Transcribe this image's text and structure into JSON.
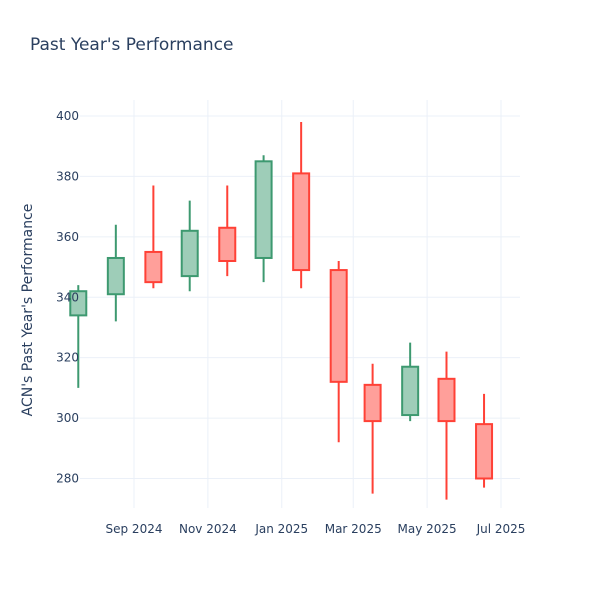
{
  "chart_data": {
    "type": "candlestick",
    "title": "Past Year's Performance",
    "ylabel": "ACN's Past Year's Performance",
    "xlabel": "",
    "ylim": [
      267,
      405
    ],
    "y_ticks": [
      280,
      300,
      320,
      340,
      360,
      380,
      400
    ],
    "x_ticks": [
      "Sep 2024",
      "Nov 2024",
      "Jan 2025",
      "Mar 2025",
      "May 2025",
      "Jul 2025"
    ],
    "colors": {
      "increasing": "#3d9970",
      "decreasing": "#ff4136",
      "increasing_fill": "#9ecdb8",
      "decreasing_fill": "#ff9f9a"
    },
    "candles": [
      {
        "date": "2024-07-17",
        "open": 334,
        "high": 344,
        "low": 310,
        "close": 342
      },
      {
        "date": "2024-08-17",
        "open": 341,
        "high": 364,
        "low": 332,
        "close": 353
      },
      {
        "date": "2024-09-17",
        "open": 355,
        "high": 377,
        "low": 343,
        "close": 345
      },
      {
        "date": "2024-10-17",
        "open": 347,
        "high": 372,
        "low": 342,
        "close": 362
      },
      {
        "date": "2024-11-17",
        "open": 363,
        "high": 377,
        "low": 347,
        "close": 352
      },
      {
        "date": "2024-12-17",
        "open": 353,
        "high": 387,
        "low": 345,
        "close": 385
      },
      {
        "date": "2025-01-17",
        "open": 381,
        "high": 398,
        "low": 343,
        "close": 349
      },
      {
        "date": "2025-02-17",
        "open": 349,
        "high": 352,
        "low": 292,
        "close": 312
      },
      {
        "date": "2025-03-17",
        "open": 311,
        "high": 318,
        "low": 275,
        "close": 299
      },
      {
        "date": "2025-04-17",
        "open": 301,
        "high": 325,
        "low": 299,
        "close": 317
      },
      {
        "date": "2025-05-17",
        "open": 313,
        "high": 322,
        "low": 273,
        "close": 299
      },
      {
        "date": "2025-06-17",
        "open": 298,
        "high": 308,
        "low": 277,
        "close": 280
      }
    ]
  }
}
